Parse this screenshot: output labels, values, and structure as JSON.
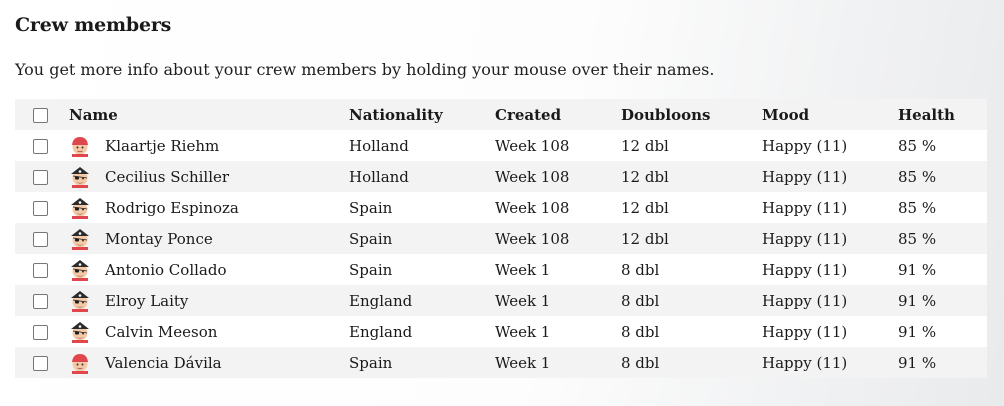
{
  "page": {
    "title": "Crew members",
    "intro": "You get more info about your crew members by holding your mouse over their names."
  },
  "table": {
    "headers": {
      "name": "Name",
      "nationality": "Nationality",
      "created": "Created",
      "doubloons": "Doubloons",
      "mood": "Mood",
      "health": "Health"
    },
    "rows": [
      {
        "avatar": "female-pirate-icon",
        "name": "Klaartje Riehm",
        "nationality": "Holland",
        "created": "Week 108",
        "doubloons": "12 dbl",
        "mood": "Happy (11)",
        "health": "85 %"
      },
      {
        "avatar": "male-pirate-icon",
        "name": "Cecilius Schiller",
        "nationality": "Holland",
        "created": "Week 108",
        "doubloons": "12 dbl",
        "mood": "Happy (11)",
        "health": "85 %"
      },
      {
        "avatar": "male-pirate-icon",
        "name": "Rodrigo Espinoza",
        "nationality": "Spain",
        "created": "Week 108",
        "doubloons": "12 dbl",
        "mood": "Happy (11)",
        "health": "85 %"
      },
      {
        "avatar": "male-pirate-icon",
        "name": "Montay Ponce",
        "nationality": "Spain",
        "created": "Week 108",
        "doubloons": "12 dbl",
        "mood": "Happy (11)",
        "health": "85 %"
      },
      {
        "avatar": "male-pirate-icon",
        "name": "Antonio Collado",
        "nationality": "Spain",
        "created": "Week 1",
        "doubloons": "8 dbl",
        "mood": "Happy (11)",
        "health": "91 %"
      },
      {
        "avatar": "male-pirate-icon",
        "name": "Elroy Laity",
        "nationality": "England",
        "created": "Week 1",
        "doubloons": "8 dbl",
        "mood": "Happy (11)",
        "health": "91 %"
      },
      {
        "avatar": "male-pirate-icon",
        "name": "Calvin Meeson",
        "nationality": "England",
        "created": "Week 1",
        "doubloons": "8 dbl",
        "mood": "Happy (11)",
        "health": "91 %"
      },
      {
        "avatar": "female-pirate-icon",
        "name": "Valencia Dávila",
        "nationality": "Spain",
        "created": "Week 1",
        "doubloons": "8 dbl",
        "mood": "Happy (11)",
        "health": "91 %"
      }
    ]
  },
  "colors": {
    "row_alt": "#f3f3f3",
    "bandana_red": "#e0474c",
    "skin": "#f4c9a7"
  }
}
